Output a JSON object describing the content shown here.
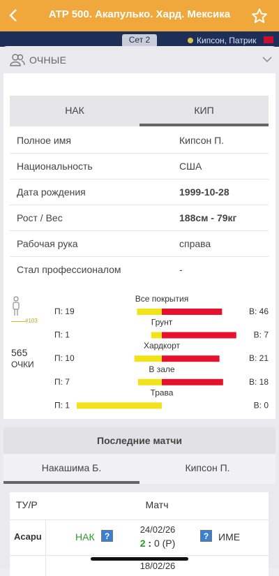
{
  "header": {
    "title": "ATP 500. Акапулько. Хард. Мексика"
  },
  "status": {
    "set": "Сет 2",
    "player": "Кипсон, Патрик"
  },
  "section": "ОЧНЫЕ",
  "player_tabs": [
    "НАК",
    "КИП"
  ],
  "info": [
    {
      "label": "Полное имя",
      "value": "Кипсон П."
    },
    {
      "label": "Национальность",
      "value": "США"
    },
    {
      "label": "Дата рождения",
      "value": "1999-10-28"
    },
    {
      "label": "Рост / Вес",
      "value": "188см - 79кг"
    },
    {
      "label": "Рабочая рука",
      "value": "справа"
    },
    {
      "label": "Стал профессионалом",
      "value": "-"
    }
  ],
  "ranking": {
    "rank": "#103",
    "points": "565",
    "points_label": "ОЧКИ"
  },
  "surfaces": [
    {
      "name": "Все покрытия",
      "wins": 19,
      "wins_label": "П: 19",
      "losses": 46,
      "losses_label": "В: 46"
    },
    {
      "name": "Грунт",
      "wins": 1,
      "wins_label": "П: 1",
      "losses": 7,
      "losses_label": "В: 7"
    },
    {
      "name": "Хардкорт",
      "wins": 10,
      "wins_label": "П: 10",
      "losses": 21,
      "losses_label": "В: 21"
    },
    {
      "name": "В зале",
      "wins": 7,
      "wins_label": "П: 7",
      "losses": 18,
      "losses_label": "В: 18"
    },
    {
      "name": "Трава",
      "wins": 1,
      "wins_label": "П: 1",
      "losses": 0,
      "losses_label": "В: 0"
    }
  ],
  "recent": {
    "title": "Последние матчи",
    "tabs": [
      "Накашима Б.",
      "Кипсон П."
    ],
    "columns": [
      "ТУ/Р",
      "Матч"
    ],
    "rows": [
      {
        "tour": "Acapu",
        "player1": "НАК",
        "date": "24/02/26",
        "score": [
          "2",
          ":",
          "0 (Р)"
        ],
        "player2": "ИМЕ"
      },
      {
        "date": "18/02/26"
      }
    ]
  }
}
